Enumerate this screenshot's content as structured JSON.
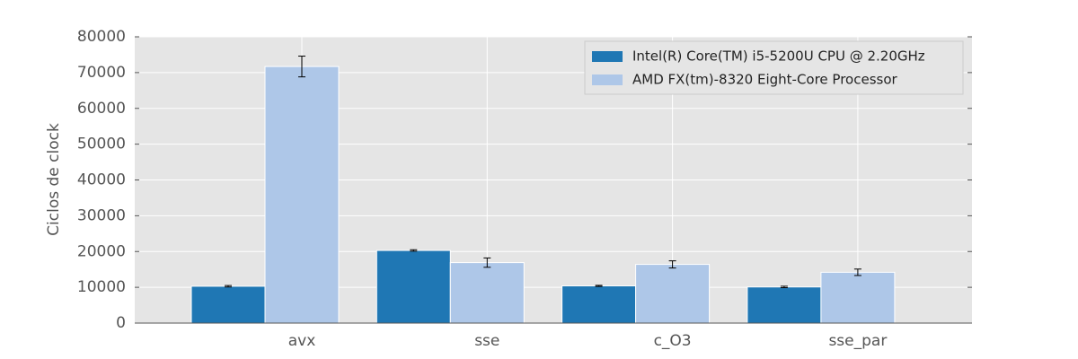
{
  "chart_data": {
    "type": "bar",
    "y_label": "Ciclos de clock",
    "categories": [
      "avx",
      "sse",
      "c_O3",
      "sse_par"
    ],
    "series": [
      {
        "name": "Intel(R) Core(TM) i5-5200U CPU @ 2.20GHz",
        "color": "#1f77b4",
        "values": [
          10300,
          20300,
          10400,
          10100
        ],
        "errors": [
          200,
          200,
          150,
          200
        ]
      },
      {
        "name": "AMD FX(tm)-8320 Eight-Core Processor",
        "color": "#aec7e8",
        "values": [
          71700,
          16900,
          16400,
          14200
        ],
        "errors": [
          2900,
          1300,
          1000,
          900
        ]
      }
    ],
    "ylim": [
      0,
      80000
    ],
    "yticks": [
      0,
      10000,
      20000,
      30000,
      40000,
      50000,
      60000,
      70000,
      80000
    ],
    "grid": true,
    "legend": "upper right"
  }
}
